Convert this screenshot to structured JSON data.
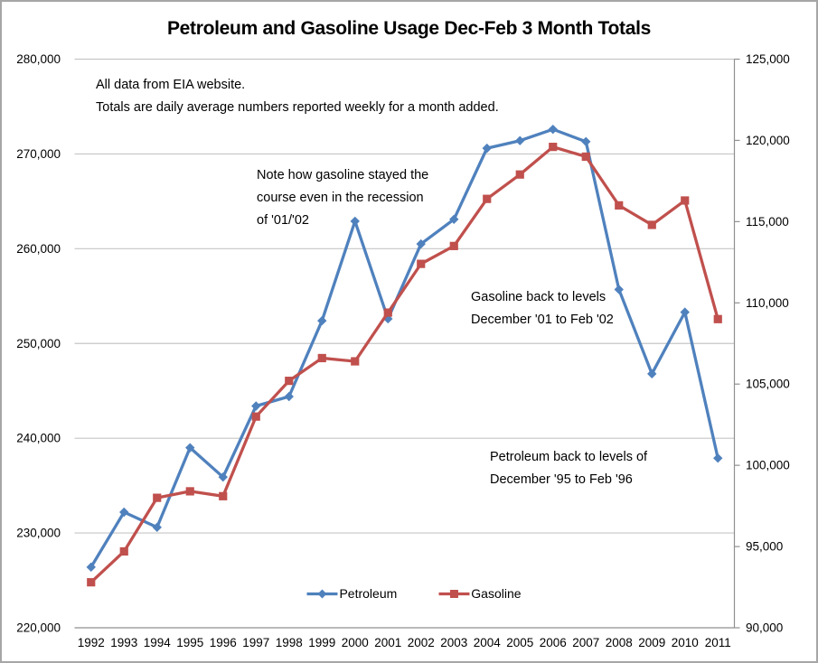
{
  "chart_data": {
    "type": "line",
    "title": "Petroleum and Gasoline Usage Dec-Feb 3 Month Totals",
    "categories": [
      "1992",
      "1993",
      "1994",
      "1995",
      "1996",
      "1997",
      "1998",
      "1999",
      "2000",
      "2001",
      "2002",
      "2003",
      "2004",
      "2005",
      "2006",
      "2007",
      "2008",
      "2009",
      "2010",
      "2011"
    ],
    "series": [
      {
        "name": "Petroleum",
        "axis": "left",
        "color": "#4F81BD",
        "marker": "diamond",
        "values": [
          226400,
          232200,
          230600,
          239000,
          235900,
          243400,
          244400,
          252400,
          262900,
          252600,
          260500,
          263100,
          270600,
          271400,
          272600,
          271300,
          255700,
          246800,
          253300,
          237900
        ]
      },
      {
        "name": "Gasoline",
        "axis": "right",
        "color": "#C0504D",
        "marker": "square",
        "values": [
          92800,
          94700,
          98000,
          98400,
          98100,
          103000,
          105200,
          106600,
          106400,
          109400,
          112400,
          113500,
          116400,
          117900,
          119600,
          119000,
          116000,
          114800,
          116300,
          109000
        ]
      }
    ],
    "left_axis": {
      "min": 220000,
      "max": 280000,
      "step": 10000,
      "tick_labels": [
        "220,000",
        "230,000",
        "240,000",
        "250,000",
        "260,000",
        "270,000",
        "280,000"
      ]
    },
    "right_axis": {
      "min": 90000,
      "max": 125000,
      "step": 5000,
      "tick_labels": [
        "90,000",
        "95,000",
        "100,000",
        "105,000",
        "110,000",
        "115,000",
        "120,000",
        "125,000"
      ]
    },
    "grid": true,
    "legend_position": "bottom-center-inside"
  },
  "annotations": {
    "source_note": "All data from EIA website.\nTotals are daily average numbers reported weekly for a month added.",
    "recession_note": "Note how gasoline stayed the\ncourse even in the recession\nof '01/'02",
    "gasoline_note": "Gasoline back to levels\nDecember '01 to Feb '02",
    "petroleum_note": "Petroleum back to levels of\nDecember '95 to Feb '96"
  },
  "colors": {
    "petroleum": "#4F81BD",
    "gasoline": "#C0504D",
    "gridline": "#C6C6C6",
    "axis": "#8F8F8F",
    "frame_border": "#A6A6A6",
    "text": "#000000"
  }
}
